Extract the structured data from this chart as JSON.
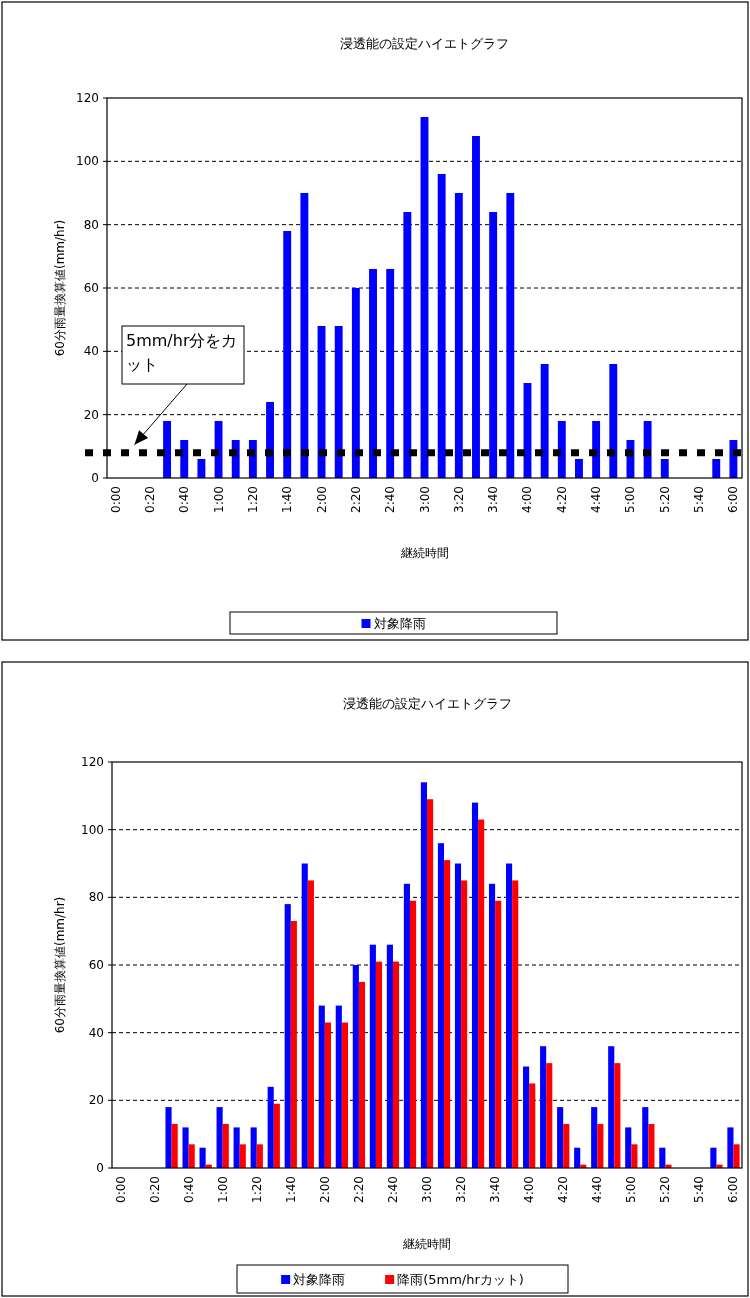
{
  "chart_data": [
    {
      "type": "bar",
      "title": "浸透能の設定ハイエトグラフ",
      "xlabel": "継続時間",
      "ylabel": "60分雨量換算値(mm/hr)",
      "categories": [
        "0:00",
        null,
        "0:20",
        null,
        "0:40",
        null,
        "1:00",
        null,
        "1:20",
        null,
        "1:40",
        null,
        "2:00",
        null,
        "2:20",
        null,
        "2:40",
        null,
        "3:00",
        null,
        "3:20",
        null,
        "3:40",
        null,
        "4:00",
        null,
        "4:20",
        null,
        "4:40",
        null,
        "5:00",
        null,
        "5:20",
        null,
        "5:40",
        null,
        "6:00"
      ],
      "series": [
        {
          "name": "対象降雨",
          "color": "#0000ff",
          "values": [
            0,
            0,
            0,
            18,
            12,
            6,
            18,
            12,
            12,
            24,
            78,
            90,
            48,
            48,
            60,
            66,
            66,
            84,
            114,
            96,
            90,
            108,
            84,
            90,
            30,
            36,
            18,
            6,
            18,
            36,
            12,
            18,
            6,
            0,
            0,
            6,
            12
          ]
        }
      ],
      "ylim": [
        0,
        120
      ],
      "yticks": [
        0,
        20,
        40,
        60,
        80,
        100,
        120
      ],
      "grid": "y",
      "legend": "bottom",
      "ref_lines": [
        {
          "axis": "y",
          "value": 8,
          "color": "#000000",
          "line_style": "dotted"
        }
      ],
      "annotations": [
        "5mm/hr分をカット"
      ]
    },
    {
      "type": "bar",
      "title": "浸透能の設定ハイエトグラフ",
      "xlabel": "継続時間",
      "ylabel": "60分雨量換算値(mm/hr)",
      "categories": [
        "0:00",
        null,
        "0:20",
        null,
        "0:40",
        null,
        "1:00",
        null,
        "1:20",
        null,
        "1:40",
        null,
        "2:00",
        null,
        "2:20",
        null,
        "2:40",
        null,
        "3:00",
        null,
        "3:20",
        null,
        "3:40",
        null,
        "4:00",
        null,
        "4:20",
        null,
        "4:40",
        null,
        "5:00",
        null,
        "5:20",
        null,
        "5:40",
        null,
        "6:00"
      ],
      "series": [
        {
          "name": "対象降雨",
          "color": "#0000ff",
          "values": [
            0,
            0,
            0,
            18,
            12,
            6,
            18,
            12,
            12,
            24,
            78,
            90,
            48,
            48,
            60,
            66,
            66,
            84,
            114,
            96,
            90,
            108,
            84,
            90,
            30,
            36,
            18,
            6,
            18,
            36,
            12,
            18,
            6,
            0,
            0,
            6,
            12
          ]
        },
        {
          "name": "降雨(5mm/hrカット)",
          "color": "#ff0000",
          "values": [
            0,
            0,
            0,
            13,
            7,
            1,
            13,
            7,
            7,
            19,
            73,
            85,
            43,
            43,
            55,
            61,
            61,
            79,
            109,
            91,
            85,
            103,
            79,
            85,
            25,
            31,
            13,
            1,
            13,
            31,
            7,
            13,
            1,
            0,
            0,
            1,
            7
          ]
        }
      ],
      "ylim": [
        0,
        120
      ],
      "yticks": [
        0,
        20,
        40,
        60,
        80,
        100,
        120
      ],
      "grid": "y",
      "legend": "bottom"
    }
  ]
}
